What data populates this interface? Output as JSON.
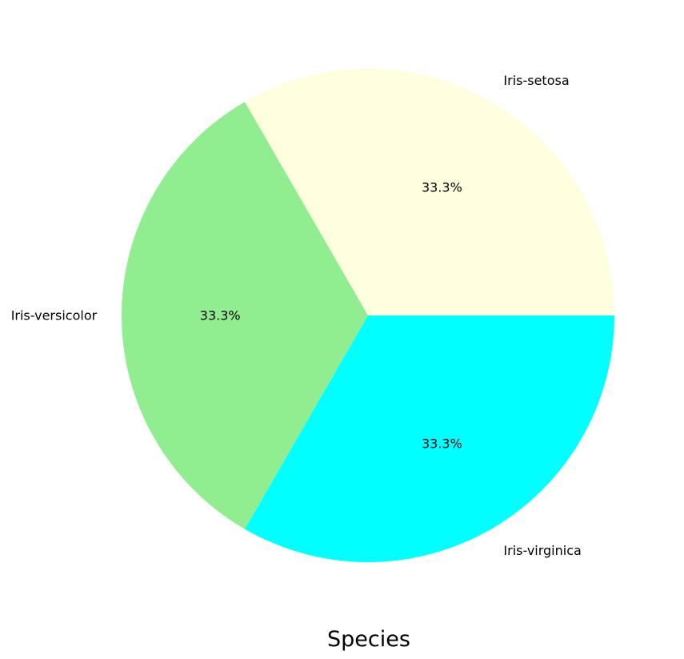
{
  "chart_data": {
    "type": "pie",
    "title": "",
    "xlabel": "Species",
    "categories": [
      "Iris-setosa",
      "Iris-versicolor",
      "Iris-virginica"
    ],
    "values": [
      50,
      50,
      50
    ],
    "percent_labels": [
      "33.3%",
      "33.3%",
      "33.3%"
    ],
    "colors": [
      "#ffffe0",
      "#90ee90",
      "#00ffff"
    ],
    "start_angle_deg": 0,
    "direction": "counterclockwise",
    "legend": "none"
  }
}
